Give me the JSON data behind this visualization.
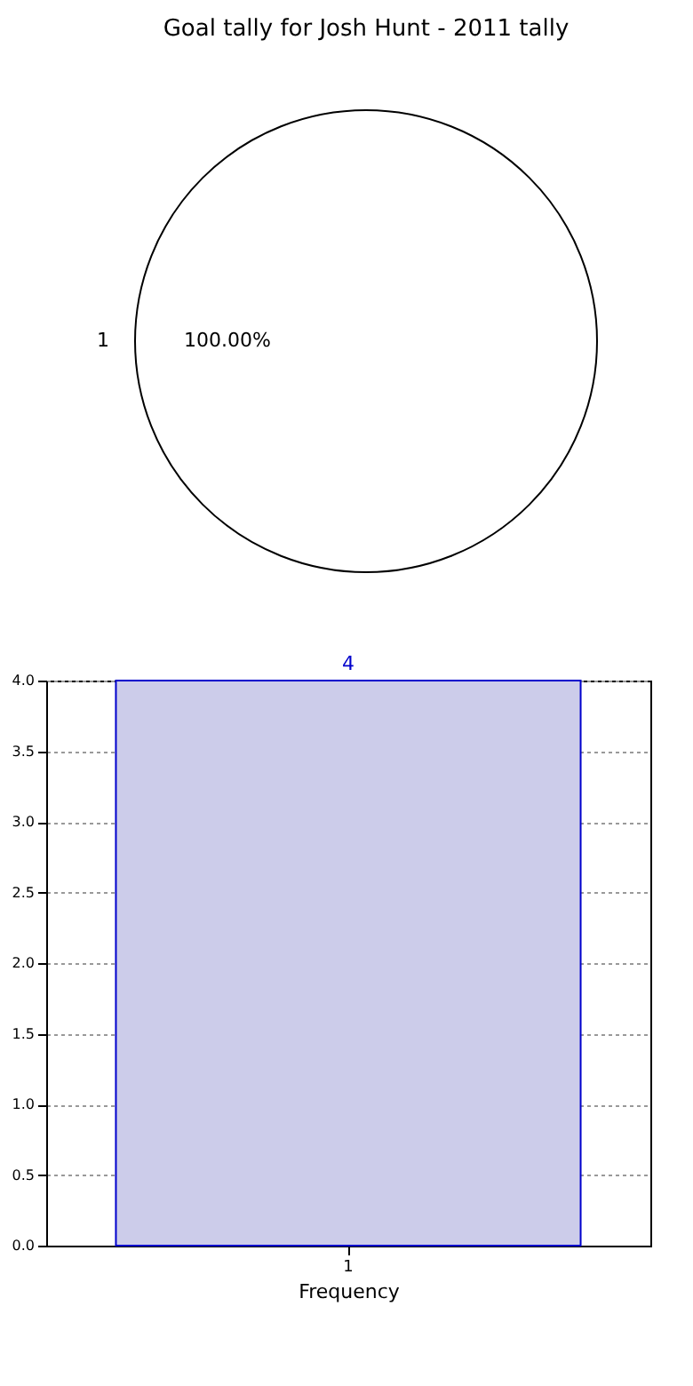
{
  "chart_data": [
    {
      "type": "pie",
      "title": "Goal tally for Josh Hunt - 2011 tally",
      "categories": [
        "1"
      ],
      "values": [
        100
      ],
      "colors": [
        "#ffffff"
      ],
      "value_labels": [
        "100.00%"
      ]
    },
    {
      "type": "bar",
      "categories": [
        "1"
      ],
      "values": [
        4
      ],
      "color": "#ccccea",
      "xlabel": "Frequency",
      "ylim": [
        0,
        4
      ],
      "yticks": [
        {
          "value": 0,
          "label": "0.0"
        },
        {
          "value": 0.5,
          "label": "0.5"
        },
        {
          "value": 1,
          "label": "1.0"
        },
        {
          "value": 1.5,
          "label": "1.5"
        },
        {
          "value": 2,
          "label": "2.0"
        },
        {
          "value": 2.5,
          "label": "2.5"
        },
        {
          "value": 3,
          "label": "3.0"
        },
        {
          "value": 3.5,
          "label": "3.5"
        },
        {
          "value": 4,
          "label": "4.0"
        }
      ],
      "grid": true,
      "data_labels": true
    }
  ]
}
